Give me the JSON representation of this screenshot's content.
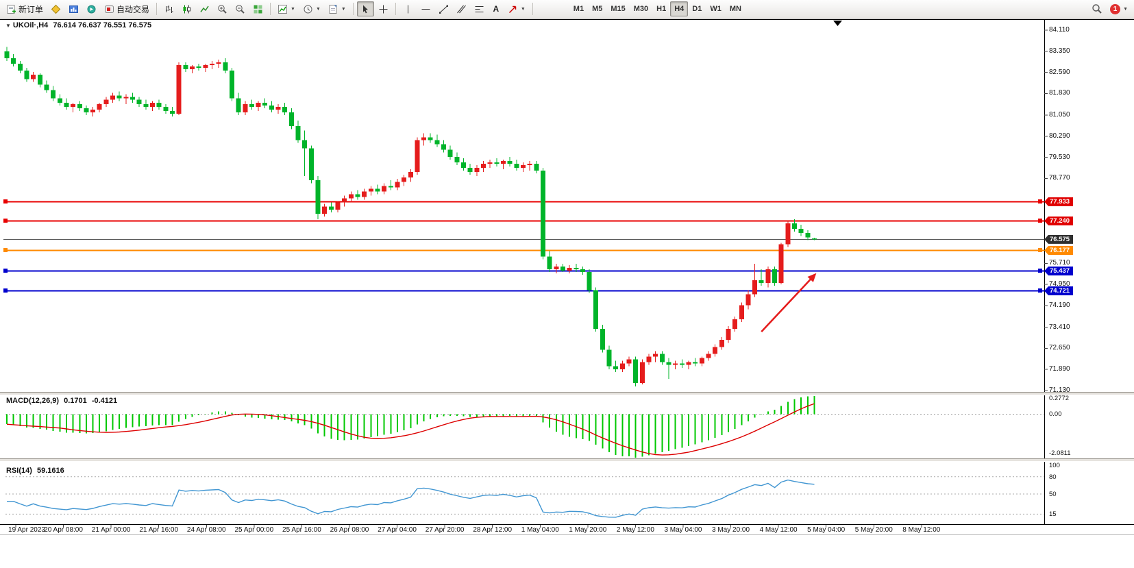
{
  "toolbar": {
    "new_order_label": "新订单",
    "autotrading_label": "自动交易",
    "text_tool_label": "A",
    "timeframes": [
      "M1",
      "M5",
      "M15",
      "M30",
      "H1",
      "H4",
      "D1",
      "W1",
      "MN"
    ],
    "active_timeframe": "H4",
    "notification_badge": "1"
  },
  "chart": {
    "collapse_arrow": "▼",
    "symbol_title": "UKOil·,H4",
    "ohlc_values": "76.614 76.637 76.551 76.575"
  },
  "price_scale": {
    "badges": [
      {
        "text": "77.933",
        "price": 77.933,
        "bg": "#e00000"
      },
      {
        "text": "77.240",
        "price": 77.24,
        "bg": "#e00000"
      },
      {
        "text": "76.575",
        "price": 76.575,
        "bg": "#2f2f2f"
      },
      {
        "text": "76.177",
        "price": 76.177,
        "bg": "#ff8a00"
      },
      {
        "text": "75.437",
        "price": 75.437,
        "bg": "#0000cd"
      },
      {
        "text": "74.721",
        "price": 74.721,
        "bg": "#0000cd"
      }
    ]
  },
  "indicators": {
    "macd": {
      "name": "MACD(12,26,9)",
      "value_main": "0.1701",
      "value_signal": "-0.4121",
      "scale_max": "0.2772",
      "scale_zero": "0.00",
      "scale_min": "-2.0811"
    },
    "rsi": {
      "name": "RSI(14)",
      "value": "59.1616",
      "scale_labels": [
        "100",
        "80",
        "50",
        "15"
      ]
    }
  },
  "chart_data": {
    "type": "candlestick",
    "symbol": "UKOil",
    "timeframe": "H4",
    "title": "UKOil·,H4",
    "last_ohlc": {
      "open": 76.614,
      "high": 76.637,
      "low": 76.551,
      "close": 76.575
    },
    "price_range": [
      71.13,
      84.11
    ],
    "price_ticks": [
      "84.110",
      "83.350",
      "82.590",
      "81.830",
      "81.050",
      "80.290",
      "79.530",
      "78.770",
      "75.710",
      "74.950",
      "74.190",
      "73.410",
      "72.650",
      "71.890",
      "71.130"
    ],
    "time_labels": [
      "19 Apr 2023",
      "20 Apr 08:00",
      "21 Apr 00:00",
      "21 Apr 16:00",
      "24 Apr 08:00",
      "25 Apr 00:00",
      "25 Apr 16:00",
      "26 Apr 08:00",
      "27 Apr 04:00",
      "27 Apr 20:00",
      "28 Apr 12:00",
      "1 May 04:00",
      "1 May 20:00",
      "2 May 12:00",
      "3 May 04:00",
      "3 May 20:00",
      "4 May 12:00",
      "5 May 04:00",
      "5 May 20:00",
      "8 May 12:00"
    ],
    "hlines": [
      {
        "price": 77.933,
        "color": "#e80000",
        "width": 2,
        "markers": true
      },
      {
        "price": 77.24,
        "color": "#e80000",
        "width": 2,
        "markers": true
      },
      {
        "price": 76.575,
        "color": "#5a5a5a",
        "width": 1,
        "markers": false
      },
      {
        "price": 76.177,
        "color": "#ff8a00",
        "width": 2,
        "markers": true
      },
      {
        "price": 75.437,
        "color": "#0000cd",
        "width": 2,
        "markers": true
      },
      {
        "price": 74.721,
        "color": "#0000cd",
        "width": 2,
        "markers": true
      }
    ],
    "arrow": {
      "from_bar": 114,
      "from_price": 73.25,
      "to_bar": 122.3,
      "to_price": 75.36,
      "color": "#e51c1c"
    },
    "colors": {
      "up": "#e51c1c",
      "down": "#00b42a",
      "macd_hist": "#00c800",
      "macd_signal": "#dd0000",
      "rsi": "#4196d2"
    },
    "macd": {
      "fast": 12,
      "slow": 26,
      "signal": 9,
      "current_main": 0.1701,
      "current_signal": -0.4121,
      "displayed_range": [
        -2.0811,
        0.2772
      ]
    },
    "rsi": {
      "period": 14,
      "current": 59.1616,
      "levels": [
        80,
        50,
        15
      ]
    },
    "candles": [
      [
        83.35,
        83.5,
        83.0,
        83.1
      ],
      [
        83.1,
        83.25,
        82.8,
        82.9
      ],
      [
        82.9,
        83.0,
        82.55,
        82.65
      ],
      [
        82.65,
        82.75,
        82.25,
        82.35
      ],
      [
        82.35,
        82.6,
        82.25,
        82.5
      ],
      [
        82.5,
        82.55,
        82.05,
        82.15
      ],
      [
        82.15,
        82.3,
        81.85,
        81.95
      ],
      [
        81.95,
        82.1,
        81.55,
        81.65
      ],
      [
        81.65,
        81.8,
        81.4,
        81.5
      ],
      [
        81.5,
        81.65,
        81.25,
        81.35
      ],
      [
        81.35,
        81.5,
        81.15,
        81.45
      ],
      [
        81.45,
        81.55,
        81.2,
        81.3
      ],
      [
        81.3,
        81.4,
        81.05,
        81.15
      ],
      [
        81.15,
        81.35,
        81.0,
        81.25
      ],
      [
        81.25,
        81.5,
        81.15,
        81.45
      ],
      [
        81.45,
        81.7,
        81.35,
        81.6
      ],
      [
        81.6,
        81.85,
        81.5,
        81.75
      ],
      [
        81.75,
        81.9,
        81.55,
        81.65
      ],
      [
        81.65,
        81.8,
        81.45,
        81.7
      ],
      [
        81.7,
        81.85,
        81.5,
        81.6
      ],
      [
        81.6,
        81.7,
        81.35,
        81.45
      ],
      [
        81.45,
        81.6,
        81.25,
        81.35
      ],
      [
        81.35,
        81.55,
        81.2,
        81.5
      ],
      [
        81.5,
        81.6,
        81.25,
        81.35
      ],
      [
        81.35,
        81.45,
        81.1,
        81.2
      ],
      [
        81.2,
        81.35,
        81.0,
        81.1
      ],
      [
        81.1,
        82.95,
        81.05,
        82.85
      ],
      [
        82.85,
        82.95,
        82.6,
        82.7
      ],
      [
        82.7,
        82.85,
        82.55,
        82.8
      ],
      [
        82.8,
        82.9,
        82.65,
        82.75
      ],
      [
        82.75,
        82.9,
        82.6,
        82.85
      ],
      [
        82.85,
        83.0,
        82.7,
        82.9
      ],
      [
        82.9,
        83.05,
        82.75,
        82.95
      ],
      [
        82.95,
        83.1,
        82.55,
        82.65
      ],
      [
        82.65,
        82.75,
        81.55,
        81.65
      ],
      [
        81.65,
        81.85,
        81.05,
        81.15
      ],
      [
        81.15,
        81.55,
        81.05,
        81.45
      ],
      [
        81.45,
        81.6,
        81.25,
        81.35
      ],
      [
        81.35,
        81.55,
        81.2,
        81.5
      ],
      [
        81.5,
        81.65,
        81.3,
        81.4
      ],
      [
        81.4,
        81.55,
        81.15,
        81.25
      ],
      [
        81.25,
        81.45,
        81.1,
        81.35
      ],
      [
        81.35,
        81.5,
        81.05,
        81.15
      ],
      [
        81.15,
        81.3,
        80.55,
        80.65
      ],
      [
        80.65,
        80.85,
        80.05,
        80.15
      ],
      [
        80.15,
        80.5,
        78.85,
        79.85
      ],
      [
        79.85,
        79.95,
        78.6,
        78.7
      ],
      [
        78.7,
        78.85,
        77.3,
        77.5
      ],
      [
        77.5,
        77.85,
        77.4,
        77.75
      ],
      [
        77.75,
        77.9,
        77.55,
        77.65
      ],
      [
        77.65,
        77.95,
        77.55,
        77.9
      ],
      [
        77.9,
        78.15,
        77.75,
        78.05
      ],
      [
        78.05,
        78.3,
        77.9,
        78.2
      ],
      [
        78.2,
        78.35,
        78.0,
        78.1
      ],
      [
        78.1,
        78.4,
        78.0,
        78.3
      ],
      [
        78.3,
        78.5,
        78.15,
        78.4
      ],
      [
        78.4,
        78.55,
        78.2,
        78.3
      ],
      [
        78.3,
        78.6,
        78.2,
        78.5
      ],
      [
        78.5,
        78.7,
        78.35,
        78.45
      ],
      [
        78.45,
        78.75,
        78.35,
        78.65
      ],
      [
        78.65,
        78.9,
        78.5,
        78.8
      ],
      [
        78.8,
        79.1,
        78.65,
        79.0
      ],
      [
        79.0,
        80.25,
        78.9,
        80.15
      ],
      [
        80.15,
        80.4,
        79.95,
        80.25
      ],
      [
        80.25,
        80.4,
        80.05,
        80.15
      ],
      [
        80.15,
        80.35,
        79.9,
        80.0
      ],
      [
        80.0,
        80.15,
        79.7,
        79.8
      ],
      [
        79.8,
        79.95,
        79.45,
        79.55
      ],
      [
        79.55,
        79.7,
        79.25,
        79.35
      ],
      [
        79.35,
        79.5,
        79.05,
        79.15
      ],
      [
        79.15,
        79.3,
        78.9,
        79.0
      ],
      [
        79.0,
        79.25,
        78.85,
        79.15
      ],
      [
        79.15,
        79.4,
        79.0,
        79.3
      ],
      [
        79.3,
        79.45,
        79.15,
        79.35
      ],
      [
        79.35,
        79.5,
        79.2,
        79.3
      ],
      [
        79.3,
        79.45,
        79.1,
        79.4
      ],
      [
        79.4,
        79.55,
        79.2,
        79.3
      ],
      [
        79.3,
        79.45,
        79.05,
        79.15
      ],
      [
        79.15,
        79.35,
        79.0,
        79.25
      ],
      [
        79.25,
        79.4,
        79.05,
        79.3
      ],
      [
        79.3,
        79.4,
        78.95,
        79.05
      ],
      [
        79.05,
        79.15,
        75.85,
        75.95
      ],
      [
        75.95,
        76.15,
        75.4,
        75.5
      ],
      [
        75.5,
        75.7,
        75.35,
        75.6
      ],
      [
        75.6,
        75.7,
        75.4,
        75.45
      ],
      [
        75.45,
        75.65,
        75.35,
        75.55
      ],
      [
        75.55,
        75.7,
        75.4,
        75.5
      ],
      [
        75.5,
        75.6,
        75.3,
        75.4
      ],
      [
        75.4,
        75.5,
        74.65,
        74.75
      ],
      [
        74.75,
        74.85,
        73.25,
        73.35
      ],
      [
        73.35,
        73.5,
        72.5,
        72.6
      ],
      [
        72.6,
        72.75,
        71.9,
        72.0
      ],
      [
        72.0,
        72.2,
        71.8,
        71.9
      ],
      [
        71.9,
        72.2,
        71.8,
        72.1
      ],
      [
        72.1,
        72.35,
        72.0,
        72.25
      ],
      [
        72.25,
        72.35,
        71.28,
        71.4
      ],
      [
        71.4,
        72.25,
        71.35,
        72.15
      ],
      [
        72.15,
        72.45,
        72.05,
        72.35
      ],
      [
        72.35,
        72.55,
        72.15,
        72.45
      ],
      [
        72.45,
        72.55,
        72.05,
        72.15
      ],
      [
        72.15,
        72.3,
        71.55,
        72.05
      ],
      [
        72.05,
        72.2,
        71.9,
        72.1
      ],
      [
        72.1,
        72.25,
        71.95,
        72.05
      ],
      [
        72.05,
        72.2,
        71.9,
        72.15
      ],
      [
        72.15,
        72.3,
        72.0,
        72.1
      ],
      [
        72.1,
        72.35,
        72.0,
        72.3
      ],
      [
        72.3,
        72.55,
        72.2,
        72.45
      ],
      [
        72.45,
        72.8,
        72.35,
        72.7
      ],
      [
        72.7,
        73.05,
        72.6,
        72.95
      ],
      [
        72.95,
        73.45,
        72.85,
        73.35
      ],
      [
        73.35,
        73.8,
        73.25,
        73.7
      ],
      [
        73.7,
        74.3,
        73.6,
        74.2
      ],
      [
        74.2,
        74.75,
        74.05,
        74.6
      ],
      [
        74.6,
        75.7,
        74.5,
        75.1
      ],
      [
        75.1,
        75.5,
        74.9,
        75.0
      ],
      [
        75.0,
        75.6,
        74.85,
        75.5
      ],
      [
        75.5,
        75.6,
        74.9,
        75.0
      ],
      [
        75.0,
        76.45,
        74.95,
        76.4
      ],
      [
        76.4,
        77.25,
        76.3,
        77.15
      ],
      [
        77.15,
        77.3,
        76.85,
        76.95
      ],
      [
        76.95,
        77.1,
        76.7,
        76.8
      ],
      [
        76.8,
        76.9,
        76.55,
        76.65
      ],
      [
        76.614,
        76.637,
        76.551,
        76.575
      ]
    ]
  }
}
